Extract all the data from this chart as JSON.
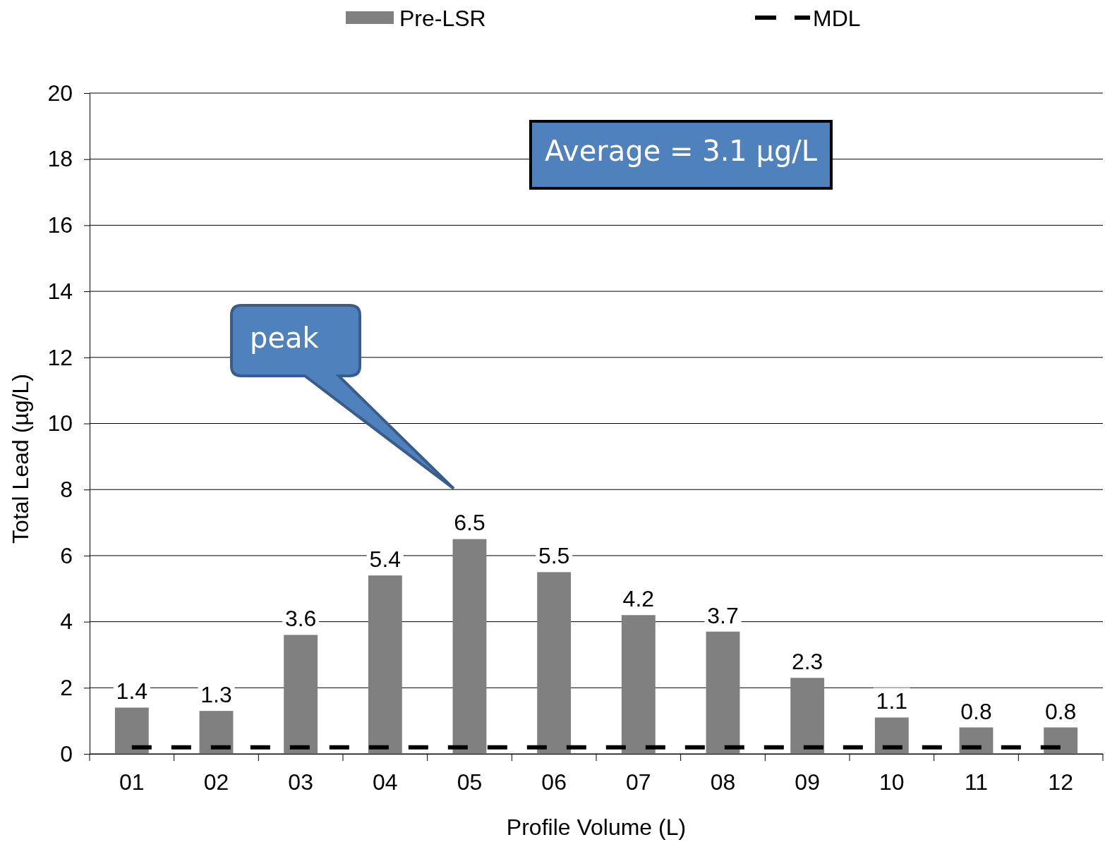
{
  "chart_data": {
    "type": "bar",
    "xlabel": "Profile Volume (L)",
    "ylabel": "Total Lead (µg/L)",
    "categories": [
      "01",
      "02",
      "03",
      "04",
      "05",
      "06",
      "07",
      "08",
      "09",
      "10",
      "11",
      "12"
    ],
    "series": [
      {
        "name": "Pre-LSR",
        "color": "#808080",
        "values": [
          1.4,
          1.3,
          3.6,
          5.4,
          6.5,
          5.5,
          4.2,
          3.7,
          2.3,
          1.1,
          0.8,
          0.8
        ],
        "value_labels": [
          "1.4",
          "1.3",
          "3.6",
          "5.4",
          "6.5",
          "5.5",
          "4.2",
          "3.7",
          "2.3",
          "1.1",
          "0.8",
          "0.8"
        ]
      },
      {
        "name": "MDL",
        "type": "line",
        "color": "#000000",
        "line_style": "dashed",
        "values": [
          0.2,
          0.2,
          0.2,
          0.2,
          0.2,
          0.2,
          0.2,
          0.2,
          0.2,
          0.2,
          0.2,
          0.2
        ]
      }
    ],
    "ylim": [
      0,
      20
    ],
    "yticks": [
      0,
      2,
      4,
      6,
      8,
      10,
      12,
      14,
      16,
      18,
      20
    ],
    "grid": "y",
    "legend": "top",
    "annotations": [
      "Average = 3.1 µg/L",
      "peak"
    ]
  }
}
